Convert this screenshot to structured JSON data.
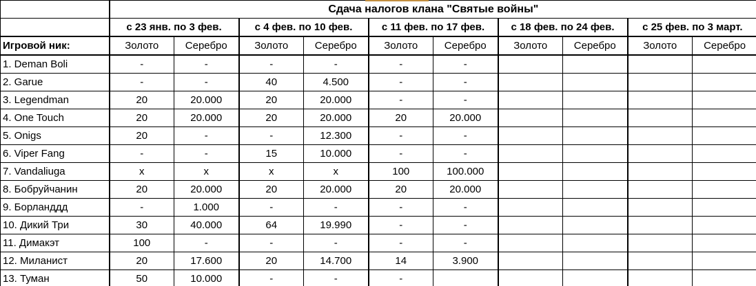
{
  "accent": {
    "top_bar_color": "#C28E3E"
  },
  "table": {
    "title": "Сдача налогов клана \"Святые войны\"",
    "name_column_header": "Игровой ник:",
    "period_headers": [
      "с 23 янв. по 3 фев.",
      "с 4 фев. по 10 фев.",
      "с 11 фев. по 17 фев.",
      "с 18 фев. по 24 фев.",
      "с 25 фев. по 3 март."
    ],
    "currency_subheaders": [
      "Золото",
      "Серебро"
    ],
    "rows": [
      {
        "name": "1. Deman Boli",
        "values": [
          "-",
          "-",
          "-",
          "-",
          "-",
          "-",
          "",
          "",
          "",
          ""
        ]
      },
      {
        "name": "2. Garue",
        "values": [
          "-",
          "-",
          "40",
          "4.500",
          "-",
          "-",
          "",
          "",
          "",
          ""
        ]
      },
      {
        "name": "3. Legendman",
        "values": [
          "20",
          "20.000",
          "20",
          "20.000",
          "-",
          "-",
          "",
          "",
          "",
          ""
        ]
      },
      {
        "name": "4. One Touch",
        "values": [
          "20",
          "20.000",
          "20",
          "20.000",
          "20",
          "20.000",
          "",
          "",
          "",
          ""
        ]
      },
      {
        "name": "5. Onigs",
        "values": [
          "20",
          "-",
          "-",
          "12.300",
          "-",
          "-",
          "",
          "",
          "",
          ""
        ]
      },
      {
        "name": "6. Viper Fang",
        "values": [
          "-",
          "-",
          "15",
          "10.000",
          "-",
          "-",
          "",
          "",
          "",
          ""
        ]
      },
      {
        "name": "7. Vandaliuga",
        "values": [
          "x",
          "x",
          "x",
          "x",
          "100",
          "100.000",
          "",
          "",
          "",
          ""
        ]
      },
      {
        "name": "8. Бобруйчанин",
        "values": [
          "20",
          "20.000",
          "20",
          "20.000",
          "20",
          "20.000",
          "",
          "",
          "",
          ""
        ]
      },
      {
        "name": "9. Борланддд",
        "values": [
          "-",
          "1.000",
          "-",
          "-",
          "-",
          "-",
          "",
          "",
          "",
          ""
        ]
      },
      {
        "name": "10. Дикий Три",
        "values": [
          "30",
          "40.000",
          "64",
          "19.990",
          "-",
          "-",
          "",
          "",
          "",
          ""
        ]
      },
      {
        "name": "11. Димакэт",
        "values": [
          "100",
          "-",
          "-",
          "-",
          "-",
          "-",
          "",
          "",
          "",
          ""
        ]
      },
      {
        "name": "12. Миланист",
        "values": [
          "20",
          "17.600",
          "20",
          "14.700",
          "14",
          "3.900",
          "",
          "",
          "",
          ""
        ]
      },
      {
        "name": "13. Туман",
        "values": [
          "50",
          "10.000",
          "-",
          "-",
          "-",
          "",
          "",
          "",
          "",
          ""
        ]
      }
    ]
  }
}
